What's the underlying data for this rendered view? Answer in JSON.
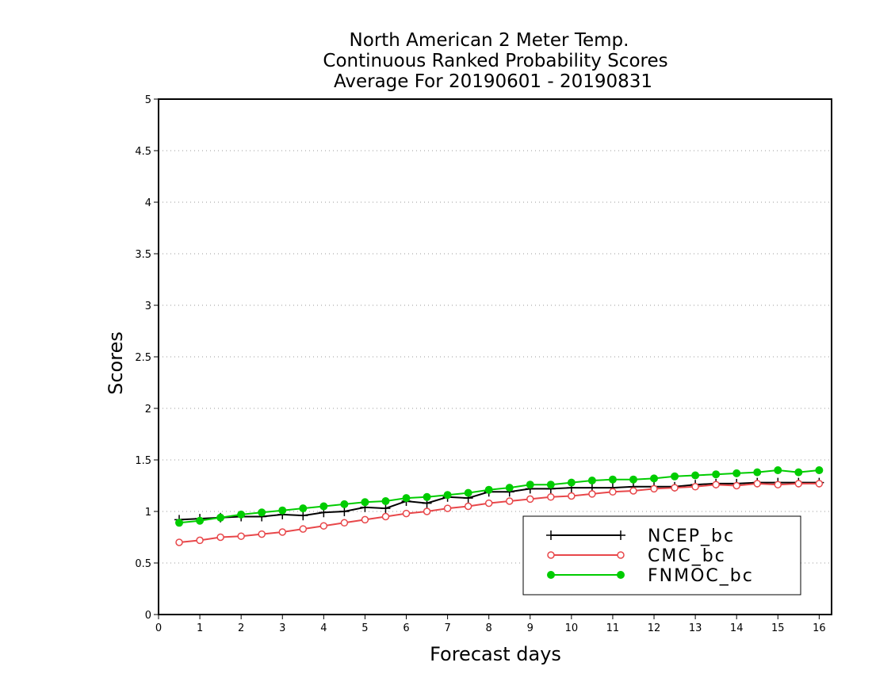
{
  "chart_data": {
    "type": "line",
    "title_lines": [
      "North American 2 Meter Temp.",
      "Continuous Ranked Probability Scores",
      "Average For 20190601 - 20190831"
    ],
    "xlabel": "Forecast days",
    "ylabel": "Scores",
    "xlim": [
      0,
      16.3
    ],
    "ylim": [
      0,
      5
    ],
    "xticks": [
      0,
      1,
      2,
      3,
      4,
      5,
      6,
      7,
      8,
      9,
      10,
      11,
      12,
      13,
      14,
      15,
      16
    ],
    "yticks": [
      0,
      0.5,
      1,
      1.5,
      2,
      2.5,
      3,
      3.5,
      4,
      4.5,
      5
    ],
    "ytick_labels": [
      "0",
      "0.5",
      "1",
      "1.5",
      "2",
      "2.5",
      "3",
      "3.5",
      "4",
      "4.5",
      "5"
    ],
    "grid": "horizontal dotted",
    "legend_position": "bottom-right",
    "x": [
      0.5,
      1,
      1.5,
      2,
      2.5,
      3,
      3.5,
      4,
      4.5,
      5,
      5.5,
      6,
      6.5,
      7,
      7.5,
      8,
      8.5,
      9,
      9.5,
      10,
      10.5,
      11,
      11.5,
      12,
      12.5,
      13,
      13.5,
      14,
      14.5,
      15,
      15.5,
      16
    ],
    "series": [
      {
        "name": "NCEP_bc",
        "color": "#000000",
        "marker": "plus",
        "values": [
          0.92,
          0.93,
          0.94,
          0.95,
          0.95,
          0.97,
          0.96,
          0.99,
          1.0,
          1.04,
          1.03,
          1.1,
          1.08,
          1.14,
          1.13,
          1.19,
          1.19,
          1.22,
          1.22,
          1.23,
          1.23,
          1.23,
          1.24,
          1.24,
          1.24,
          1.26,
          1.27,
          1.27,
          1.28,
          1.28,
          1.28,
          1.28
        ]
      },
      {
        "name": "CMC_bc",
        "color": "#e8474a",
        "marker": "open-circle",
        "values": [
          0.7,
          0.72,
          0.75,
          0.76,
          0.78,
          0.8,
          0.83,
          0.86,
          0.89,
          0.92,
          0.95,
          0.98,
          1.0,
          1.03,
          1.05,
          1.08,
          1.1,
          1.12,
          1.14,
          1.15,
          1.17,
          1.19,
          1.2,
          1.22,
          1.23,
          1.24,
          1.26,
          1.25,
          1.27,
          1.26,
          1.27,
          1.27
        ]
      },
      {
        "name": "FNMOC_bc",
        "color": "#00cc00",
        "marker": "filled-circle",
        "values": [
          0.89,
          0.91,
          0.94,
          0.97,
          0.99,
          1.01,
          1.03,
          1.05,
          1.07,
          1.09,
          1.1,
          1.13,
          1.14,
          1.16,
          1.18,
          1.21,
          1.23,
          1.26,
          1.26,
          1.28,
          1.3,
          1.31,
          1.31,
          1.32,
          1.34,
          1.35,
          1.36,
          1.37,
          1.38,
          1.4,
          1.38,
          1.4
        ]
      }
    ]
  }
}
